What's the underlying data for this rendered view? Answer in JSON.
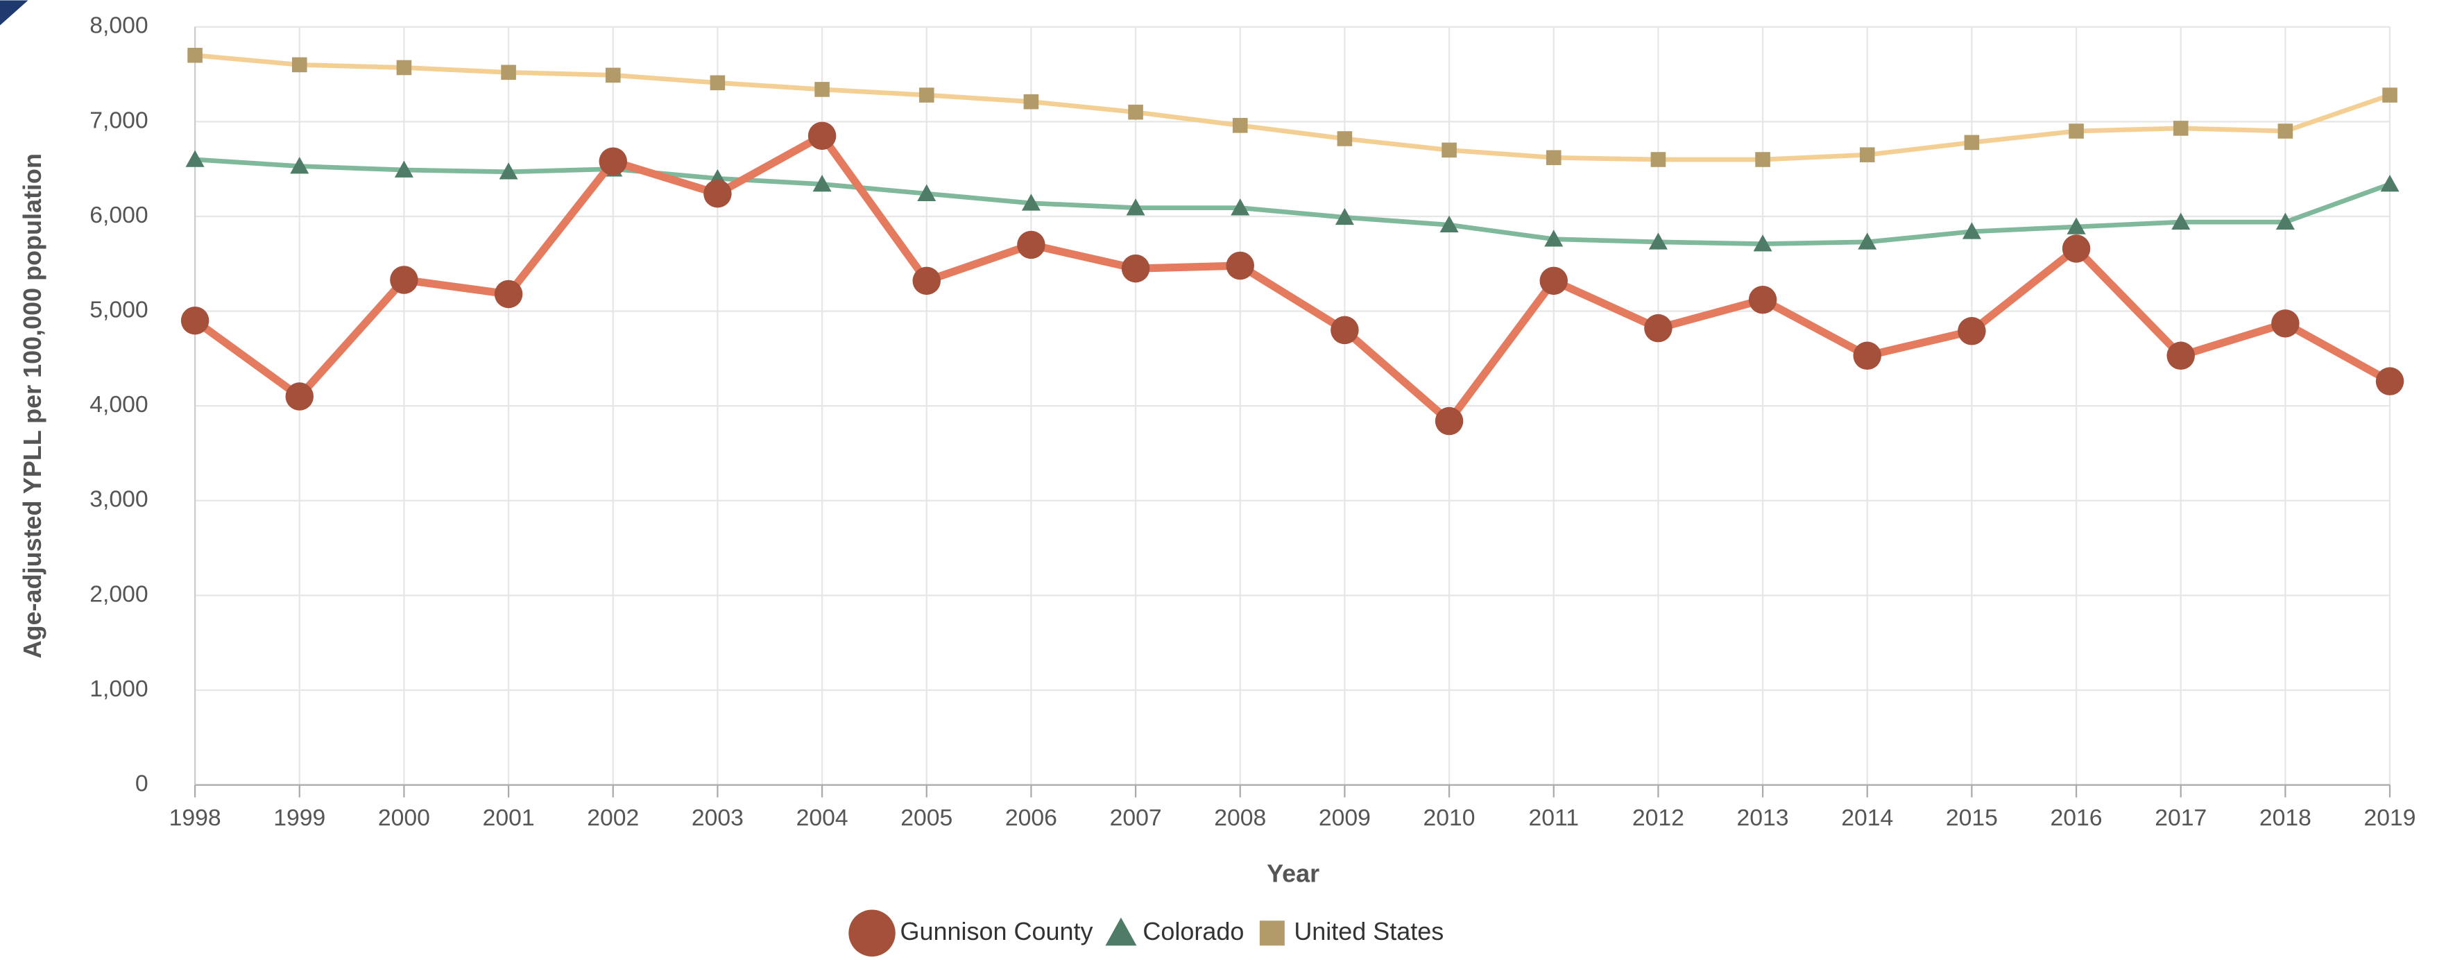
{
  "chart_data": {
    "type": "line",
    "x_label": "Year",
    "y_label": "Age-adjusted YPLL per 100,000 population",
    "x": [
      1998,
      1999,
      2000,
      2001,
      2002,
      2003,
      2004,
      2005,
      2006,
      2007,
      2008,
      2009,
      2010,
      2011,
      2012,
      2013,
      2014,
      2015,
      2016,
      2017,
      2018,
      2019
    ],
    "xlim": [
      1998,
      2019
    ],
    "xticks": [
      1998,
      1999,
      2000,
      2001,
      2002,
      2003,
      2004,
      2005,
      2006,
      2007,
      2008,
      2009,
      2010,
      2011,
      2012,
      2013,
      2014,
      2015,
      2016,
      2017,
      2018,
      2019
    ],
    "ylim": [
      0,
      8000
    ],
    "yticks": [
      0,
      {
        "value": 1000,
        "label": "1,000"
      },
      {
        "value": 2000,
        "label": "2,000"
      },
      {
        "value": 3000,
        "label": "3,000"
      },
      {
        "value": 4000,
        "label": "4,000"
      },
      {
        "value": 5000,
        "label": "5,000"
      },
      {
        "value": 6000,
        "label": "6,000"
      },
      {
        "value": 7000,
        "label": "7,000"
      },
      {
        "value": 8000,
        "label": "8,000"
      }
    ],
    "grid": true,
    "legend": "bottom",
    "series": [
      {
        "name": "Gunnison County",
        "color": "#e47b5e",
        "marker_color": "#a4503b",
        "marker": "circle",
        "values": [
          4900,
          4100,
          5330,
          5180,
          6580,
          6240,
          6850,
          5320,
          5700,
          5450,
          5480,
          4800,
          3840,
          5320,
          4820,
          5120,
          4530,
          4790,
          5660,
          4530,
          4870,
          4260
        ]
      },
      {
        "name": "Colorado",
        "color": "#80b89c",
        "marker_color": "#4e7c66",
        "marker": "triangle",
        "values": [
          6600,
          6530,
          6490,
          6470,
          6500,
          6400,
          6340,
          6240,
          6140,
          6090,
          6090,
          5990,
          5910,
          5760,
          5730,
          5710,
          5730,
          5840,
          5890,
          5940,
          5940,
          6340
        ]
      },
      {
        "name": "United States",
        "color": "#f4cf94",
        "marker_color": "#b29b68",
        "marker": "square",
        "values": [
          7700,
          7600,
          7570,
          7520,
          7490,
          7410,
          7340,
          7280,
          7210,
          7100,
          6960,
          6820,
          6700,
          6620,
          6600,
          6600,
          6650,
          6780,
          6900,
          6930,
          6900,
          7280
        ]
      }
    ]
  }
}
